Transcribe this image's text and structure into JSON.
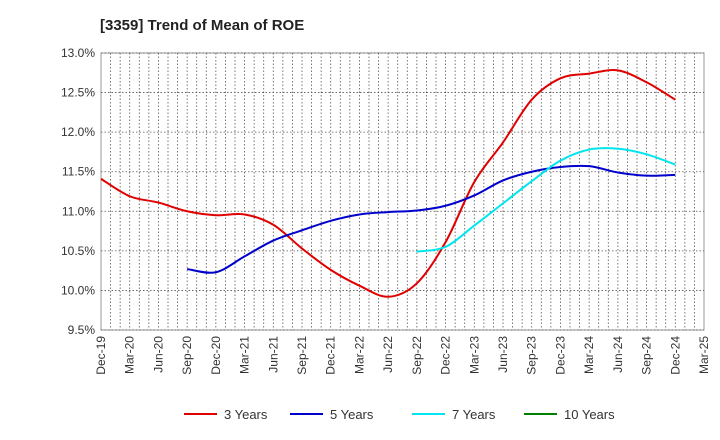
{
  "chart_data": {
    "type": "line",
    "title": "[3359]  Trend of Mean of ROE",
    "xlabel": "",
    "ylabel": "",
    "ylim": [
      9.5,
      13.0
    ],
    "yticks": [
      9.5,
      10.0,
      10.5,
      11.0,
      11.5,
      12.0,
      12.5,
      13.0
    ],
    "ytick_labels": [
      "9.5%",
      "10.0%",
      "10.5%",
      "11.0%",
      "11.5%",
      "12.0%",
      "12.5%",
      "13.0%"
    ],
    "x_categories": [
      "Dec-19",
      "Mar-20",
      "Jun-20",
      "Sep-20",
      "Dec-20",
      "Mar-21",
      "Jun-21",
      "Sep-21",
      "Dec-21",
      "Mar-22",
      "Jun-22",
      "Sep-22",
      "Dec-22",
      "Mar-23",
      "Jun-23",
      "Sep-23",
      "Dec-23",
      "Mar-24",
      "Jun-24",
      "Sep-24",
      "Dec-24",
      "Mar-25"
    ],
    "grid": true,
    "legend_position": "bottom",
    "series": [
      {
        "name": "3 Years",
        "color": "#e00000",
        "values": [
          11.41,
          11.19,
          11.11,
          11.0,
          10.95,
          10.96,
          10.83,
          10.53,
          10.26,
          10.06,
          9.92,
          10.09,
          10.61,
          11.37,
          11.87,
          12.41,
          12.68,
          12.74,
          12.78,
          12.63,
          12.41,
          null
        ]
      },
      {
        "name": "5 Years",
        "color": "#0000cc",
        "values": [
          null,
          null,
          null,
          10.27,
          10.23,
          10.43,
          10.63,
          10.76,
          10.88,
          10.96,
          10.99,
          11.01,
          11.07,
          11.2,
          11.39,
          11.5,
          11.56,
          11.57,
          11.49,
          11.45,
          11.46,
          null
        ]
      },
      {
        "name": "7 Years",
        "color": "#00e5ee",
        "values": [
          null,
          null,
          null,
          null,
          null,
          null,
          null,
          null,
          null,
          null,
          null,
          10.49,
          10.55,
          10.82,
          11.1,
          11.38,
          11.64,
          11.78,
          11.79,
          11.72,
          11.59,
          null
        ]
      },
      {
        "name": "10 Years",
        "color": "#008000",
        "values": [
          null,
          null,
          null,
          null,
          null,
          null,
          null,
          null,
          null,
          null,
          null,
          null,
          null,
          null,
          null,
          null,
          null,
          null,
          null,
          null,
          null,
          null
        ]
      }
    ]
  }
}
